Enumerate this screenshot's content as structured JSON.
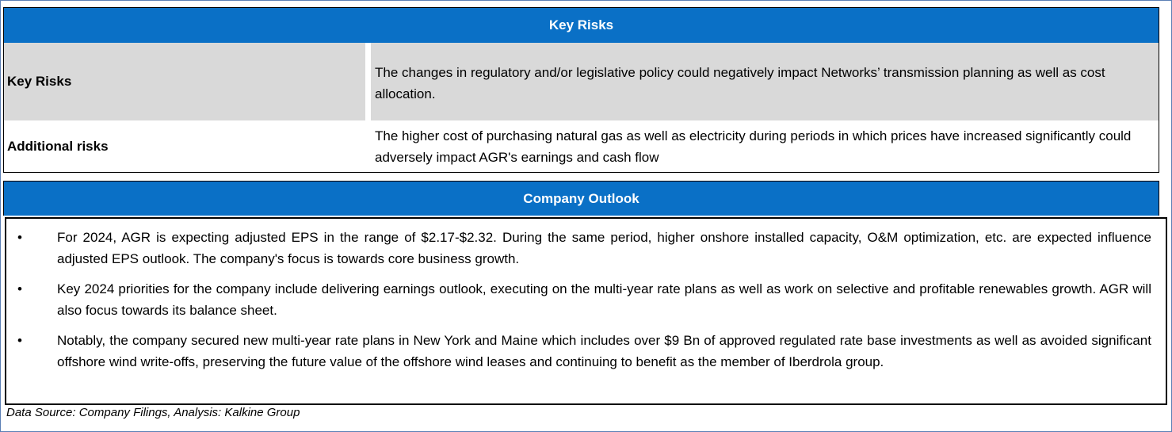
{
  "key_risks": {
    "header": "Key Risks",
    "rows": [
      {
        "label": "Key Risks",
        "text": "The changes in regulatory and/or legislative policy could negatively impact Networks’ transmission planning as well as cost allocation."
      },
      {
        "label": "Additional risks",
        "text": "The higher cost of purchasing natural gas as well as electricity during periods in which prices have increased significantly could adversely impact AGR's earnings and cash flow"
      }
    ]
  },
  "company_outlook": {
    "header": "Company Outlook",
    "bullet_symbol": "•",
    "bullets": [
      "For 2024, AGR is expecting adjusted EPS in the range of $2.17-$2.32. During the same period, higher onshore installed capacity, O&M optimization, etc. are expected influence adjusted EPS outlook. The company's focus is towards core business growth.",
      "Key 2024 priorities for the company include delivering earnings outlook, executing on the multi-year rate plans as well as work on selective and profitable renewables growth. AGR will also focus towards its balance sheet.",
      "Notably, the company secured new multi-year rate plans in New York and Maine which includes over $9 Bn of approved regulated rate base investments as well as avoided significant offshore wind write-offs, preserving the future value of the offshore wind leases and continuing to benefit as the member of Iberdrola group."
    ]
  },
  "source_note": "Data Source: Company Filings, Analysis: Kalkine Group",
  "colors": {
    "header_blue": "#0a70c6",
    "row_shade": "#d9d9d9"
  }
}
